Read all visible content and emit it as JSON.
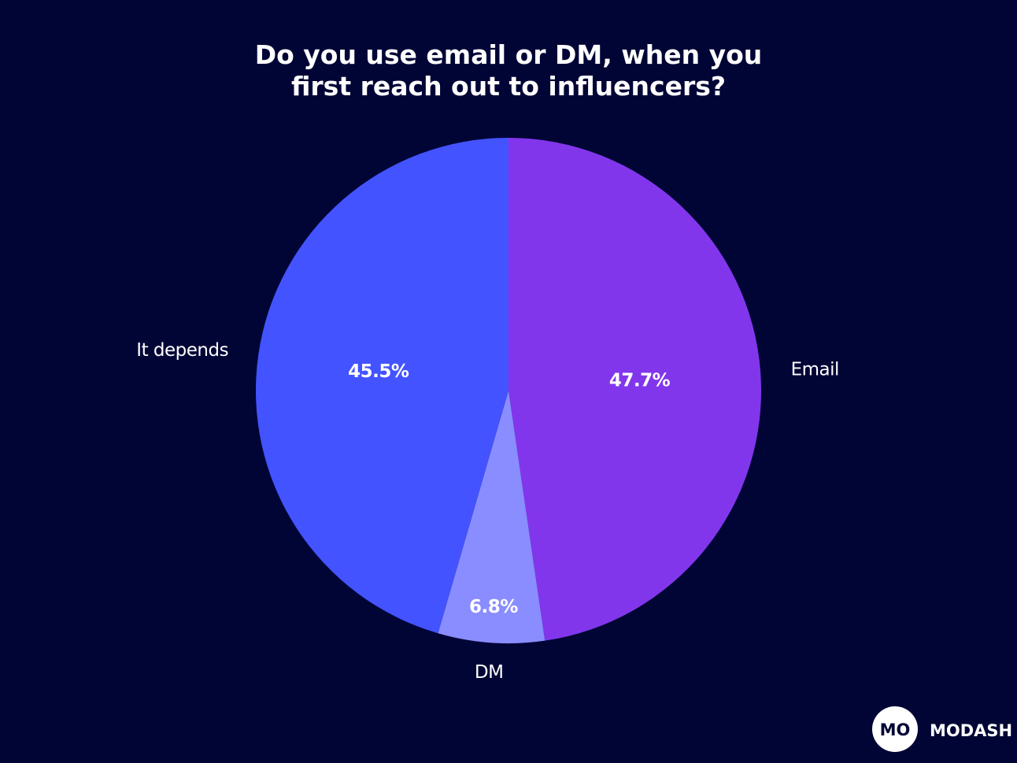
{
  "chart_data": {
    "type": "pie",
    "title": "Do you use email or DM, when you first reach out to influencers?",
    "categories": [
      "Email",
      "DM",
      "It depends"
    ],
    "values": [
      47.7,
      6.8,
      45.5
    ],
    "value_labels": [
      "47.7%",
      "6.8%",
      "45.5%"
    ],
    "colors": [
      "#8236ec",
      "#8a8dff",
      "#4353ff"
    ]
  },
  "logo": {
    "mark": "MO",
    "text": "MODASH"
  }
}
